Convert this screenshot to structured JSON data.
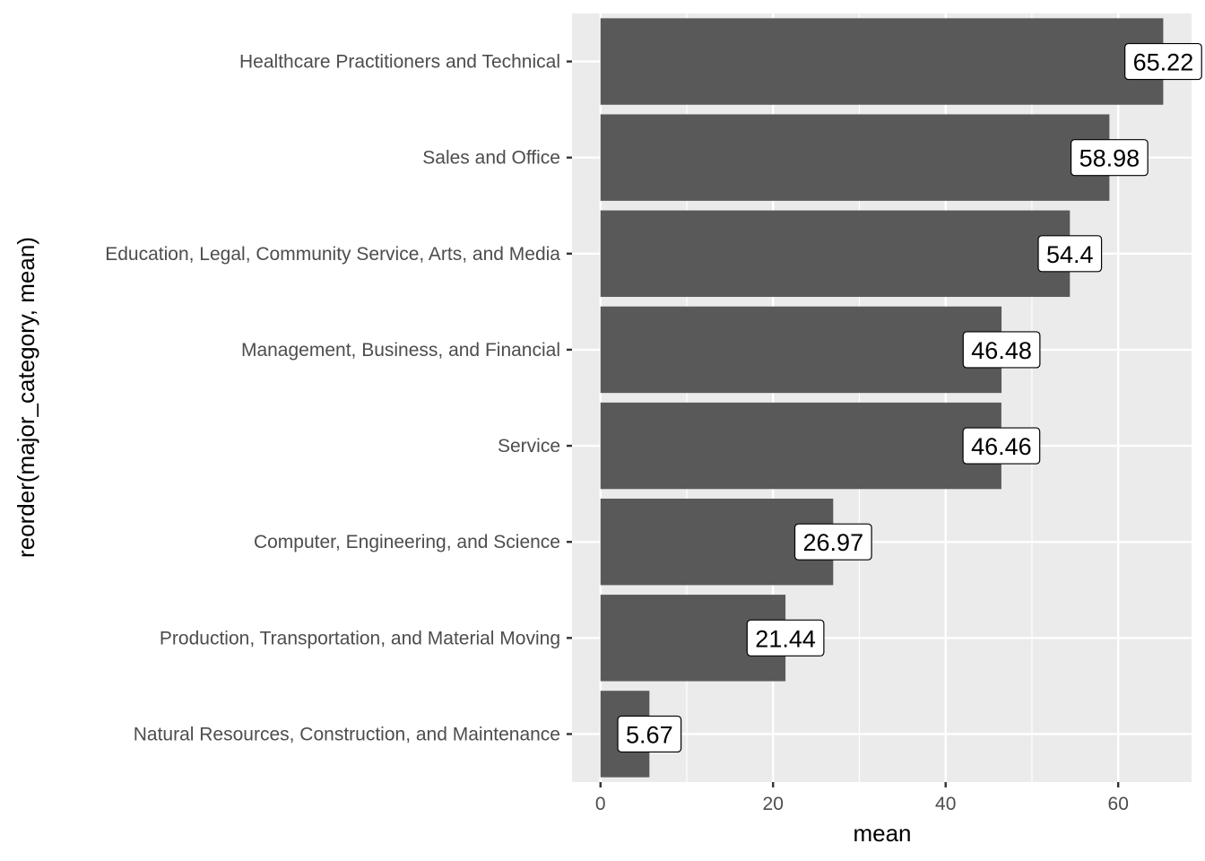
{
  "chart_data": {
    "type": "bar",
    "orientation": "horizontal",
    "title": "",
    "xlabel": "mean",
    "ylabel": "reorder(major_category, mean)",
    "categories": [
      "Healthcare Practitioners and Technical",
      "Sales and Office",
      "Education, Legal, Community Service, Arts, and Media",
      "Management, Business, and Financial",
      "Service",
      "Computer, Engineering, and Science",
      "Production, Transportation, and Material Moving",
      "Natural Resources, Construction, and Maintenance"
    ],
    "values": [
      65.22,
      58.98,
      54.4,
      46.48,
      46.46,
      26.97,
      21.44,
      5.67
    ],
    "labels": [
      "65.22",
      "58.98",
      "54.4",
      "46.48",
      "46.46",
      "26.97",
      "21.44",
      "5.67"
    ],
    "xticks": [
      "0",
      "20",
      "40",
      "60"
    ],
    "xlim": [
      -3.3,
      68.5
    ],
    "grid": true,
    "legend": "none",
    "colors": {
      "panel": "#ebebeb",
      "grid": "#ffffff",
      "bar": "#595959",
      "label_fill": "#ffffff",
      "label_border": "#000000"
    }
  }
}
